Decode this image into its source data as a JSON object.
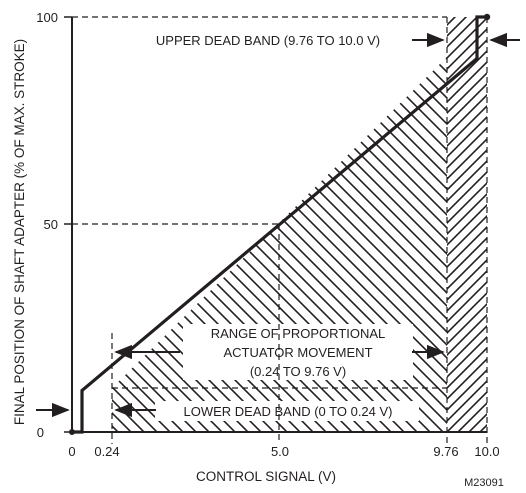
{
  "chart_data": {
    "type": "line",
    "xlabel": "CONTROL SIGNAL (V)",
    "ylabel": "FINAL POSITION OF SHAFT ADAPTER (% OF MAX. STROKE)",
    "x_ticks": [
      "0",
      "0.24",
      "5.0",
      "9.76",
      "10.0"
    ],
    "y_ticks": [
      "0",
      "50",
      "100"
    ],
    "series": [
      {
        "x": [
          0,
          0.24,
          0.24,
          9.76,
          9.76,
          10.0
        ],
        "y": [
          0,
          0,
          10,
          90,
          100,
          100
        ]
      }
    ],
    "annotations": {
      "upper_dead_band": "UPPER DEAD BAND (9.76 TO 10.0 V)",
      "range_line1": "RANGE OF PROPORTIONAL",
      "range_line2": "ACTUATOR MOVEMENT",
      "range_line3": "(0.24 TO 9.76 V)",
      "lower_dead_band": "LOWER DEAD BAND (0 TO 0.24 V)"
    },
    "figure_code": "M23091"
  }
}
